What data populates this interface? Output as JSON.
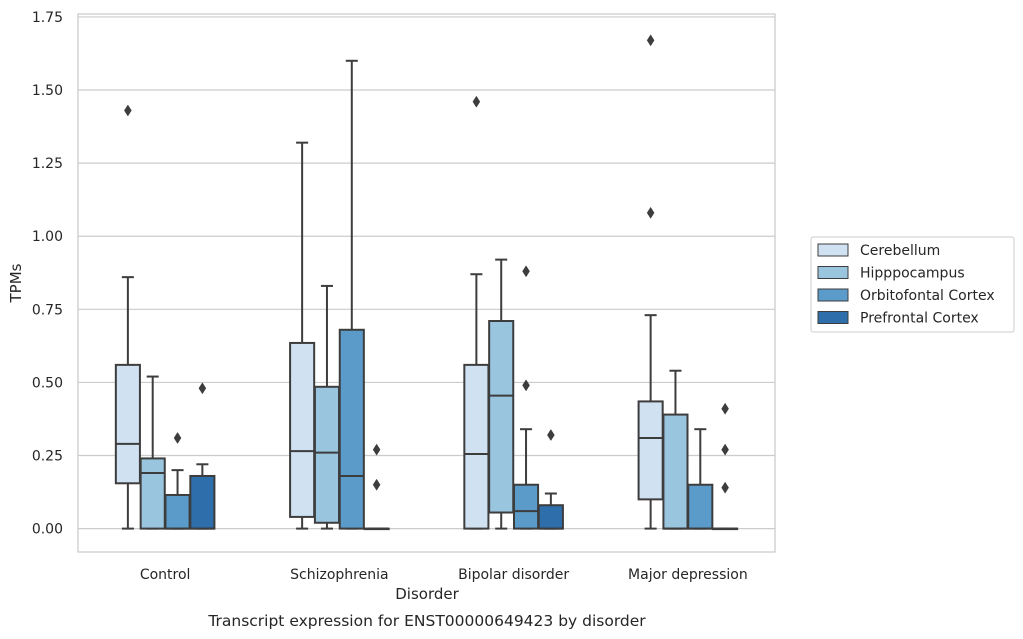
{
  "chart_data": {
    "type": "box",
    "caption": "Transcript expression for ENST00000649423 by disorder",
    "xlabel": "Disorder",
    "ylabel": "TPMs",
    "ylim": [
      -0.08,
      1.76
    ],
    "yticks": [
      "0.00",
      "0.25",
      "0.50",
      "0.75",
      "1.00",
      "1.25",
      "1.50",
      "1.75"
    ],
    "grid": "horizontal",
    "legend_position": "right",
    "categories": [
      "Control",
      "Schizophrenia",
      "Bipolar disorder",
      "Major depression"
    ],
    "series": [
      {
        "name": "Cerebellum",
        "color": "#d0e1f2",
        "boxes": [
          {
            "min": 0.0,
            "q1": 0.155,
            "median": 0.29,
            "q3": 0.56,
            "max": 0.86,
            "outliers": [
              1.43
            ]
          },
          {
            "min": 0.0,
            "q1": 0.04,
            "median": 0.265,
            "q3": 0.635,
            "max": 1.32,
            "outliers": []
          },
          {
            "min": 0.0,
            "q1": 0.0,
            "median": 0.255,
            "q3": 0.56,
            "max": 0.87,
            "outliers": [
              1.46
            ]
          },
          {
            "min": 0.0,
            "q1": 0.1,
            "median": 0.31,
            "q3": 0.435,
            "max": 0.73,
            "outliers": [
              1.08,
              1.67
            ]
          }
        ]
      },
      {
        "name": "Hipppocampus",
        "color": "#9ac5df",
        "boxes": [
          {
            "min": 0.0,
            "q1": 0.0,
            "median": 0.19,
            "q3": 0.24,
            "max": 0.52,
            "outliers": []
          },
          {
            "min": 0.0,
            "q1": 0.02,
            "median": 0.26,
            "q3": 0.485,
            "max": 0.83,
            "outliers": []
          },
          {
            "min": 0.0,
            "q1": 0.055,
            "median": 0.455,
            "q3": 0.71,
            "max": 0.92,
            "outliers": []
          },
          {
            "min": 0.0,
            "q1": 0.0,
            "median": 0.0,
            "q3": 0.39,
            "max": 0.54,
            "outliers": []
          }
        ]
      },
      {
        "name": "Orbitofontal Cortex",
        "color": "#5b9bc9",
        "boxes": [
          {
            "min": 0.0,
            "q1": 0.0,
            "median": 0.0,
            "q3": 0.115,
            "max": 0.2,
            "outliers": [
              0.31
            ]
          },
          {
            "min": 0.0,
            "q1": 0.0,
            "median": 0.18,
            "q3": 0.68,
            "max": 1.6,
            "outliers": []
          },
          {
            "min": 0.0,
            "q1": 0.0,
            "median": 0.06,
            "q3": 0.15,
            "max": 0.34,
            "outliers": [
              0.49,
              0.88
            ]
          },
          {
            "min": 0.0,
            "q1": 0.0,
            "median": 0.0,
            "q3": 0.15,
            "max": 0.34,
            "outliers": []
          }
        ]
      },
      {
        "name": "Prefrontal Cortex",
        "color": "#2e6eab",
        "boxes": [
          {
            "min": 0.0,
            "q1": 0.0,
            "median": 0.0,
            "q3": 0.18,
            "max": 0.22,
            "outliers": [
              0.48
            ]
          },
          {
            "min": 0.0,
            "q1": 0.0,
            "median": 0.0,
            "q3": 0.0,
            "max": 0.0,
            "outliers": [
              0.15,
              0.27
            ]
          },
          {
            "min": 0.0,
            "q1": 0.0,
            "median": 0.0,
            "q3": 0.08,
            "max": 0.12,
            "outliers": [
              0.32
            ]
          },
          {
            "min": 0.0,
            "q1": 0.0,
            "median": 0.0,
            "q3": 0.0,
            "max": 0.0,
            "outliers": [
              0.14,
              0.27,
              0.41
            ]
          }
        ]
      }
    ]
  }
}
